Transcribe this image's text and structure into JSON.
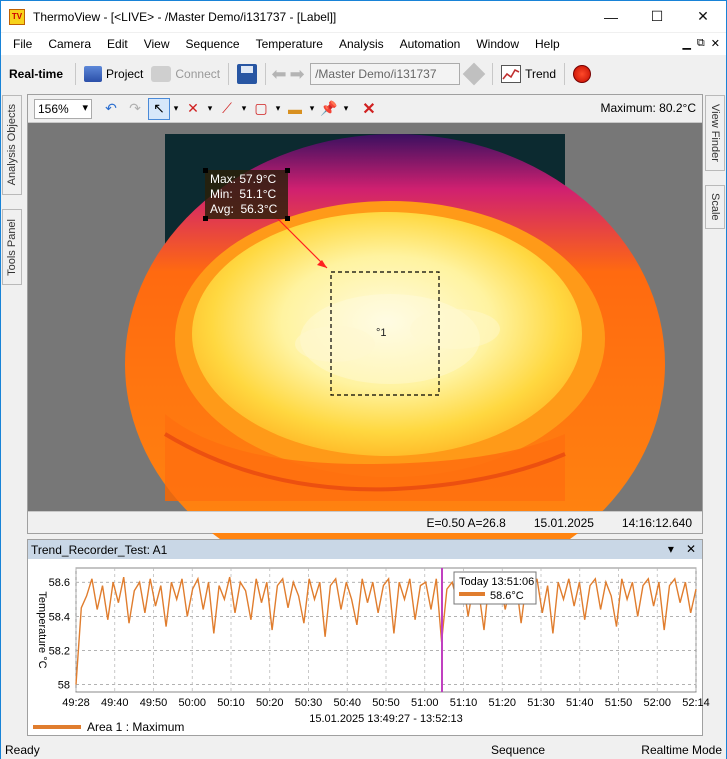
{
  "window": {
    "title": "ThermoView - [<LIVE> - /Master Demo/i131737 - [Label]]",
    "app_icon_text": "TV",
    "minimize": "—",
    "maximize": "☐",
    "close": "✕"
  },
  "menu": {
    "items": [
      "File",
      "Camera",
      "Edit",
      "View",
      "Sequence",
      "Temperature",
      "Analysis",
      "Automation",
      "Window",
      "Help"
    ],
    "mdi_buttons": [
      "▁",
      "⧉",
      "✕"
    ]
  },
  "toolbar": {
    "mode_label": "Real-time",
    "project_label": "Project",
    "connect_label": "Connect",
    "path_value": "/Master Demo/i131737",
    "trend_label": "Trend"
  },
  "side_tabs": {
    "analysis_objects": "Analysis Objects",
    "tools_panel": "Tools Panel",
    "view_finder": "View Finder",
    "scale": "Scale"
  },
  "viewer": {
    "zoom": "156%",
    "maximum_label": "Maximum: 80.2°C",
    "measure": {
      "max": "Max: 57.9°C",
      "min": "Min:  51.1°C",
      "avg": "Avg:  56.3°C"
    },
    "area_label": "°1",
    "status": {
      "emissivity": "E=0.50 A=26.8",
      "date": "15.01.2025",
      "time": "14:16:12.640"
    }
  },
  "trend": {
    "title": "Trend_Recorder_Test: A1",
    "tooltip_time": "Today 13:51:06",
    "tooltip_value": "58.6°C",
    "legend": "Area 1 : Maximum",
    "series_color": "#e07d2e",
    "cursor_color": "#c040c0"
  },
  "chart_data": {
    "type": "line",
    "title": "",
    "xlabel": "15.01.2025 13:49:27 - 13:52:13",
    "ylabel": "Temperature °C",
    "x_ticks": [
      "49:28",
      "49:40",
      "49:50",
      "50:00",
      "50:10",
      "50:20",
      "50:30",
      "50:40",
      "50:50",
      "51:00",
      "51:10",
      "51:20",
      "51:30",
      "51:40",
      "51:50",
      "52:00",
      "52:14"
    ],
    "y_ticks": [
      "58",
      "58.2",
      "58.4",
      "58.6"
    ],
    "ylim": [
      57.98,
      58.66
    ],
    "grid": true,
    "legend_position": "bottom-left",
    "series": [
      {
        "name": "Area 1 : Maximum",
        "x_range": [
          "49:28",
          "52:14"
        ],
        "values": [
          58.0,
          58.45,
          58.52,
          58.62,
          58.44,
          58.58,
          58.38,
          58.6,
          58.48,
          58.63,
          58.36,
          58.55,
          58.6,
          58.42,
          58.62,
          58.46,
          58.58,
          58.34,
          58.6,
          58.5,
          58.62,
          58.4,
          58.56,
          58.62,
          58.44,
          58.6,
          58.3,
          58.58,
          58.5,
          58.63,
          58.42,
          58.6,
          58.55,
          58.38,
          58.62,
          58.48,
          58.6,
          58.32,
          58.58,
          58.62,
          58.45,
          58.6,
          58.52,
          58.36,
          58.62,
          58.5,
          58.6,
          58.28,
          58.58,
          58.62,
          58.44,
          58.6,
          58.5,
          58.35,
          58.62,
          58.48,
          58.6,
          58.42,
          58.58,
          58.62,
          58.3,
          58.6,
          58.5,
          58.62,
          58.38,
          58.58,
          58.6,
          58.44,
          58.62,
          58.25,
          58.56,
          58.6,
          58.48,
          58.62,
          58.4,
          58.58,
          58.55,
          58.32,
          58.62,
          58.48,
          58.6,
          58.44,
          58.58,
          58.62,
          58.36,
          58.6,
          58.52,
          58.62,
          58.42,
          58.58,
          58.3,
          58.6,
          58.5,
          58.62,
          58.46,
          58.6,
          58.38,
          58.58,
          58.62,
          58.44,
          58.6,
          58.52,
          58.34,
          58.62,
          58.5,
          58.6,
          58.4,
          58.58,
          58.62,
          58.46,
          58.6,
          58.32,
          58.58,
          58.62,
          58.48,
          58.6,
          58.42,
          58.56
        ]
      }
    ]
  },
  "statusbar": {
    "ready": "Ready",
    "sequence": "Sequence",
    "mode": "Realtime Mode"
  }
}
